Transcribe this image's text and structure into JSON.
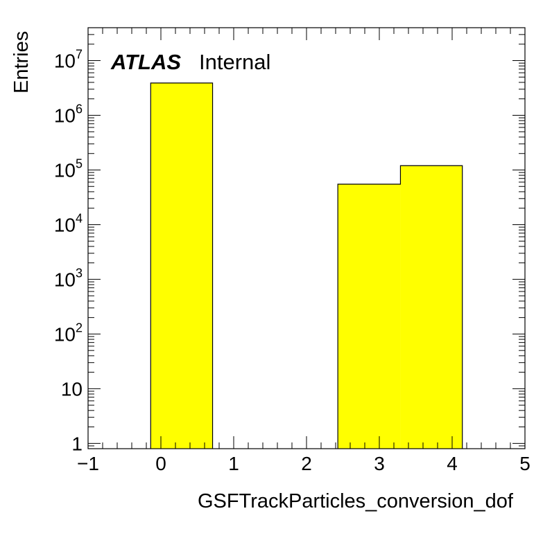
{
  "chart_data": {
    "type": "bar",
    "histogram": true,
    "title": "",
    "xlabel": "GSFTrackParticles_conversion_dof",
    "ylabel": "Entries",
    "xlim": [
      -1,
      5
    ],
    "ylim": [
      0.8,
      40000000
    ],
    "yscale": "log",
    "x_ticks": [
      -1,
      0,
      1,
      2,
      3,
      4,
      5
    ],
    "x_tick_labels": [
      "−1",
      "0",
      "1",
      "2",
      "3",
      "4",
      "5"
    ],
    "y_ticks": [
      {
        "value": 1,
        "base": "1",
        "exp": ""
      },
      {
        "value": 10,
        "base": "10",
        "exp": ""
      },
      {
        "value": 100,
        "base": "10",
        "exp": "2"
      },
      {
        "value": 1000,
        "base": "10",
        "exp": "3"
      },
      {
        "value": 10000,
        "base": "10",
        "exp": "4"
      },
      {
        "value": 100000,
        "base": "10",
        "exp": "5"
      },
      {
        "value": 1000000,
        "base": "10",
        "exp": "6"
      },
      {
        "value": 10000000,
        "base": "10",
        "exp": "7"
      }
    ],
    "bins": [
      {
        "x0": -0.14,
        "x1": 0.71,
        "value": 3900000
      },
      {
        "x0": 2.43,
        "x1": 3.29,
        "value": 55000
      },
      {
        "x0": 3.29,
        "x1": 4.14,
        "value": 120000
      }
    ],
    "fill_color": "#ffff00",
    "edge_color": "#000000",
    "grid": false,
    "annotation": {
      "bold": "ATLAS",
      "normal": "Internal"
    }
  }
}
